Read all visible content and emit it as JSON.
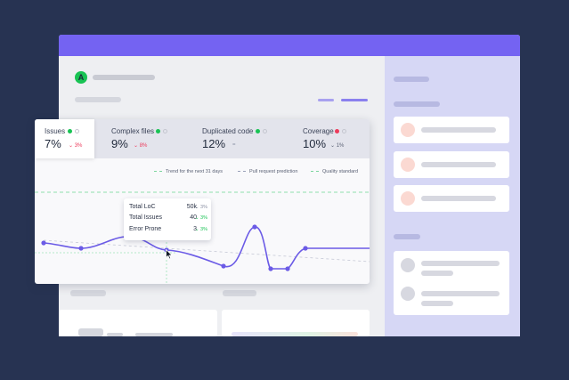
{
  "metrics": [
    {
      "label": "Issues",
      "value": "7%",
      "delta": "⌄ 3%",
      "delta_color": "#ec3b5b",
      "dot": "green",
      "active": true
    },
    {
      "label": "Complex files",
      "value": "9%",
      "delta": "⌄ 8%",
      "delta_color": "#ec3b5b",
      "dot": "green",
      "active": false
    },
    {
      "label": "Duplicated code",
      "value": "12%",
      "delta": "=",
      "delta_color": "#8a90a3",
      "dot": "green",
      "active": false
    },
    {
      "label": "Coverage",
      "value": "10%",
      "delta": "⌄ 1%",
      "delta_color": "#5b6275",
      "dot": "red",
      "active": false
    }
  ],
  "legend": {
    "trend": "Trend for the next 31 days",
    "pull_request": "Pull request prediction",
    "quality": "Quality standard"
  },
  "tooltip": {
    "rows": [
      {
        "label": "Total LoC",
        "value": "50k",
        "delta": "⌄ 3%",
        "delta_color": "#8a90a3"
      },
      {
        "label": "Total Issues",
        "value": "40",
        "delta": "⌄ 3%",
        "delta_color": "#19c354"
      },
      {
        "label": "Error Prone",
        "value": "3",
        "delta": "⌄ 3%",
        "delta_color": "#19c354"
      }
    ]
  },
  "logo": {
    "letter": "A"
  },
  "colors": {
    "accent": "#7463f2",
    "background": "#273352",
    "sidebar": "#d6d7f5",
    "positive": "#19c354",
    "negative": "#ec3b5b"
  }
}
